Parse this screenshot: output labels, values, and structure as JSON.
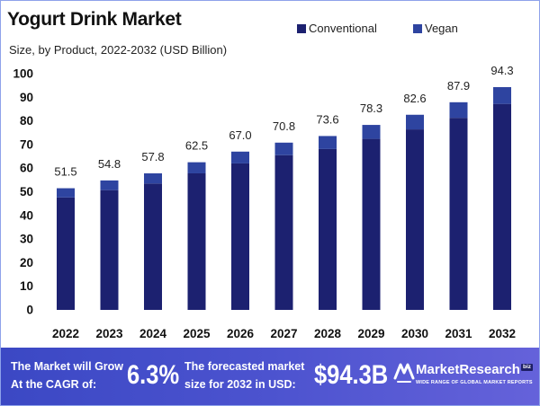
{
  "chart_data": {
    "type": "bar",
    "stacked": true,
    "title": "Yogurt Drink Market",
    "subtitle": "Size, by Product, 2022-2032 (USD Billion)",
    "xlabel": "",
    "ylabel": "",
    "ylim": [
      0,
      100
    ],
    "yticks": [
      0,
      10,
      20,
      30,
      40,
      50,
      60,
      70,
      80,
      90,
      100
    ],
    "grid": false,
    "legend_position": "top-right",
    "categories": [
      "2022",
      "2023",
      "2024",
      "2025",
      "2026",
      "2027",
      "2028",
      "2029",
      "2030",
      "2031",
      "2032"
    ],
    "series": [
      {
        "name": "Conventional",
        "color": "#1c2170",
        "values": [
          47.6,
          50.7,
          53.5,
          57.8,
          62.0,
          65.5,
          68.1,
          72.4,
          76.4,
          81.3,
          87.2
        ]
      },
      {
        "name": "Vegan",
        "color": "#2e44a0",
        "values": [
          3.9,
          4.1,
          4.3,
          4.7,
          5.0,
          5.3,
          5.5,
          5.9,
          6.2,
          6.6,
          7.1
        ]
      }
    ],
    "totals": [
      51.5,
      54.8,
      57.8,
      62.5,
      67.0,
      70.8,
      73.6,
      78.3,
      82.6,
      87.9,
      94.3
    ],
    "data_labels": [
      "51.5",
      "54.8",
      "57.8",
      "62.5",
      "67.0",
      "70.8",
      "73.6",
      "78.3",
      "82.6",
      "87.9",
      "94.3"
    ]
  },
  "banner": {
    "cagr_caption_line1": "The Market will Grow",
    "cagr_caption_line2": "At the CAGR of:",
    "cagr_value": "6.3%",
    "forecast_caption_line1": "The forecasted market",
    "forecast_caption_line2": "size for 2032 in USD:",
    "forecast_value": "$94.3B",
    "gradient": [
      "#3b48c4",
      "#4c53cf",
      "#6562da"
    ]
  },
  "brand": {
    "icon": "market-research-logo-icon",
    "name": "MarketResearch",
    "suffix": "biz",
    "badge_color": "#1d1f66",
    "tagline": "WIDE RANGE OF GLOBAL MARKET REPORTS"
  }
}
